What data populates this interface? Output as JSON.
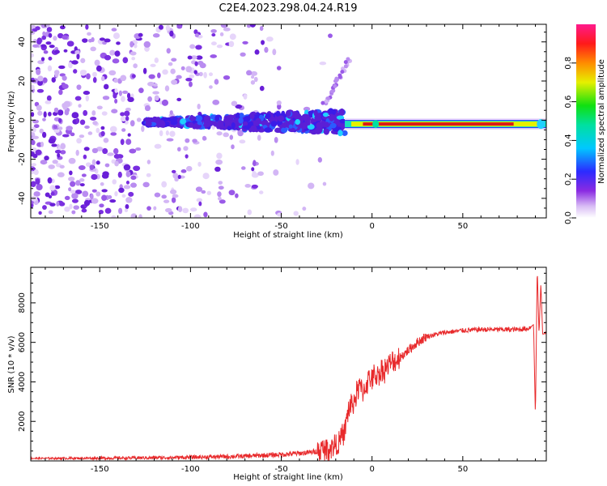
{
  "title": "C2E4.2023.298.04.24.R19",
  "colors": {
    "snr_line": "#e8292b",
    "spectrogram_ridge": "#d7191c",
    "background": "#ffffff"
  },
  "chart_data": [
    {
      "type": "heatmap",
      "name": "spectrogram",
      "title": "",
      "xlabel": "Height of straight line (km)",
      "ylabel": "Frequency (Hz)",
      "xlim": [
        -188,
        96
      ],
      "ylim": [
        -50,
        49
      ],
      "xticks": [
        -150,
        -100,
        -50,
        0,
        50
      ],
      "yticks": [
        -40,
        -20,
        0,
        20,
        40
      ],
      "grid": false,
      "colormap": "rainbow (white-purple-blue-cyan-green-yellow-red-magenta)",
      "colorbar": {
        "label": "Normalized spectral amplitude",
        "range": [
          0.0,
          1.0
        ],
        "ticks": [
          0.0,
          0.2,
          0.4,
          0.6,
          0.8
        ]
      },
      "features": [
        {
          "description": "sparse noise speckle",
          "x_range": [
            -188,
            -50
          ],
          "freq_range": [
            -50,
            49
          ]
        },
        {
          "description": "coherent tone band",
          "x_range": [
            -125,
            -15
          ],
          "freq_center": -1,
          "amplitude": [
            0.15,
            0.35
          ]
        },
        {
          "description": "strong narrow tone",
          "x_range": [
            -15,
            96
          ],
          "freq_center": -2,
          "amplitude": [
            0.9,
            1.0
          ]
        }
      ]
    },
    {
      "type": "line",
      "name": "snr",
      "title": "",
      "xlabel": "Height of straight line (km)",
      "ylabel": "SNR (10 * v/v)",
      "xlim": [
        -188,
        96
      ],
      "ylim": [
        0,
        9800
      ],
      "xticks": [
        -150,
        -100,
        -50,
        0,
        50
      ],
      "yticks": [
        2000,
        4000,
        6000,
        8000
      ],
      "grid": false,
      "series": [
        {
          "x": [
            -188,
            -170,
            -150,
            -130,
            -110,
            -90,
            -70,
            -55,
            -45,
            -35,
            -28,
            -22,
            -18,
            -15,
            -13,
            -10,
            -7,
            -5,
            -2,
            0,
            5,
            10,
            15,
            20,
            25,
            30,
            40,
            50,
            60,
            70,
            80,
            86,
            89,
            90,
            91,
            92,
            93,
            94,
            96
          ],
          "y": [
            130,
            130,
            140,
            150,
            170,
            200,
            240,
            300,
            350,
            420,
            520,
            700,
            950,
            1500,
            2600,
            3000,
            3800,
            3500,
            4100,
            4200,
            4500,
            4900,
            5200,
            5600,
            6000,
            6300,
            6500,
            6600,
            6650,
            6650,
            6650,
            6700,
            6900,
            2200,
            9800,
            6400,
            9000,
            6400,
            6500
          ]
        }
      ]
    }
  ]
}
